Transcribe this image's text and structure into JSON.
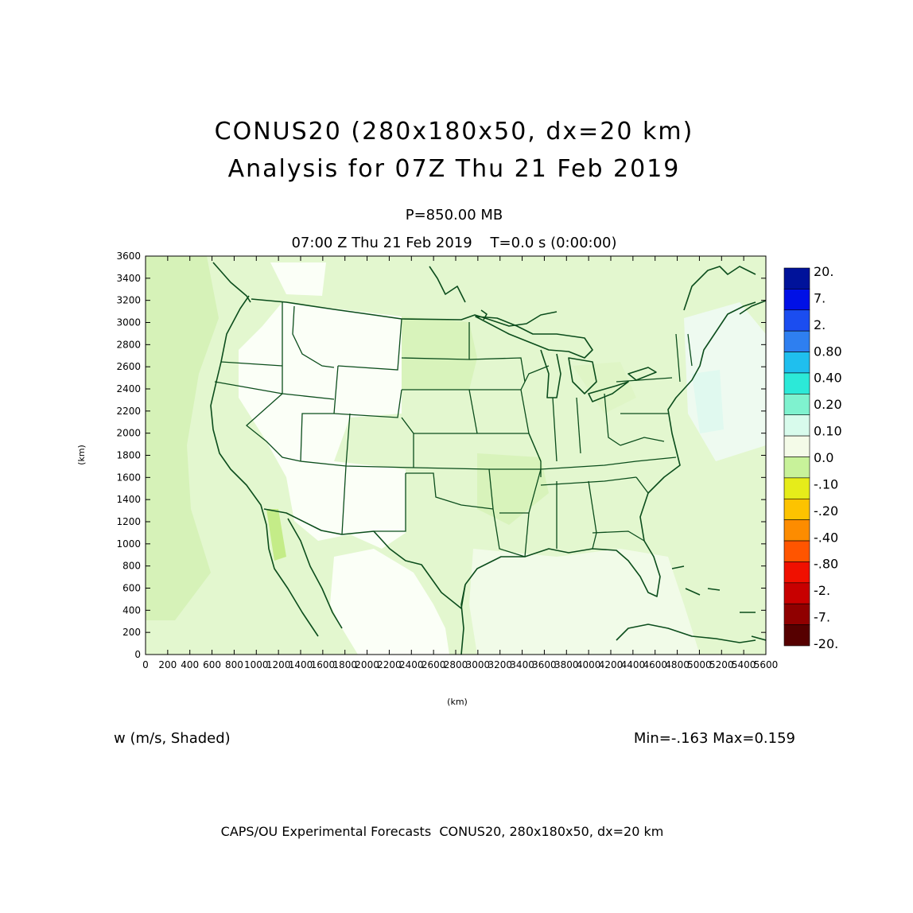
{
  "header": {
    "title_line1": "CONUS20 (280x180x50, dx=20 km)",
    "title_line2": "Analysis for 07Z Thu 21 Feb 2019",
    "level": "P=850.00 MB",
    "time": "07:00 Z Thu 21 Feb 2019    T=0.0 s (0:00:00)"
  },
  "chart_data": {
    "type": "heatmap",
    "xlabel": "(km)",
    "ylabel": "(km)",
    "xlim": [
      0,
      5600
    ],
    "ylim": [
      0,
      3600
    ],
    "x_ticks": [
      "0",
      "200",
      "400",
      "600",
      "800",
      "1000",
      "1200",
      "1400",
      "1600",
      "1800",
      "2000",
      "2200",
      "2400",
      "2600",
      "2800",
      "3000",
      "3200",
      "3400",
      "3600",
      "3800",
      "4000",
      "4200",
      "4400",
      "4600",
      "4800",
      "5000",
      "5200",
      "5400",
      "5600"
    ],
    "y_ticks": [
      "0",
      "200",
      "400",
      "600",
      "800",
      "1000",
      "1200",
      "1400",
      "1600",
      "1800",
      "2000",
      "2200",
      "2400",
      "2600",
      "2800",
      "3000",
      "3200",
      "3400",
      "3600"
    ],
    "variable": "w (m/s, Shaded)",
    "min_max": "Min=-.163 Max=0.159",
    "colorbar": {
      "labels": [
        "20.",
        "7.",
        "2.",
        "0.80",
        "0.40",
        "0.20",
        "0.10",
        "0.0",
        "-.10",
        "-.20",
        "-.40",
        "-.80",
        "-2.",
        "-7.",
        "-20."
      ],
      "colors": [
        "#00129a",
        "#0010e6",
        "#1b4df0",
        "#2e7ff0",
        "#1fbfee",
        "#2ce9d8",
        "#7ff2cf",
        "#d8fbec",
        "#f4fbe8",
        "#c8f29a",
        "#e6ec1a",
        "#fdc300",
        "#fd8c00",
        "#ff5500",
        "#f01000",
        "#c80000",
        "#900000",
        "#560000"
      ]
    }
  },
  "footer": {
    "credit": "CAPS/OU Experimental Forecasts  CONUS20, 280x180x50, dx=20 km"
  }
}
